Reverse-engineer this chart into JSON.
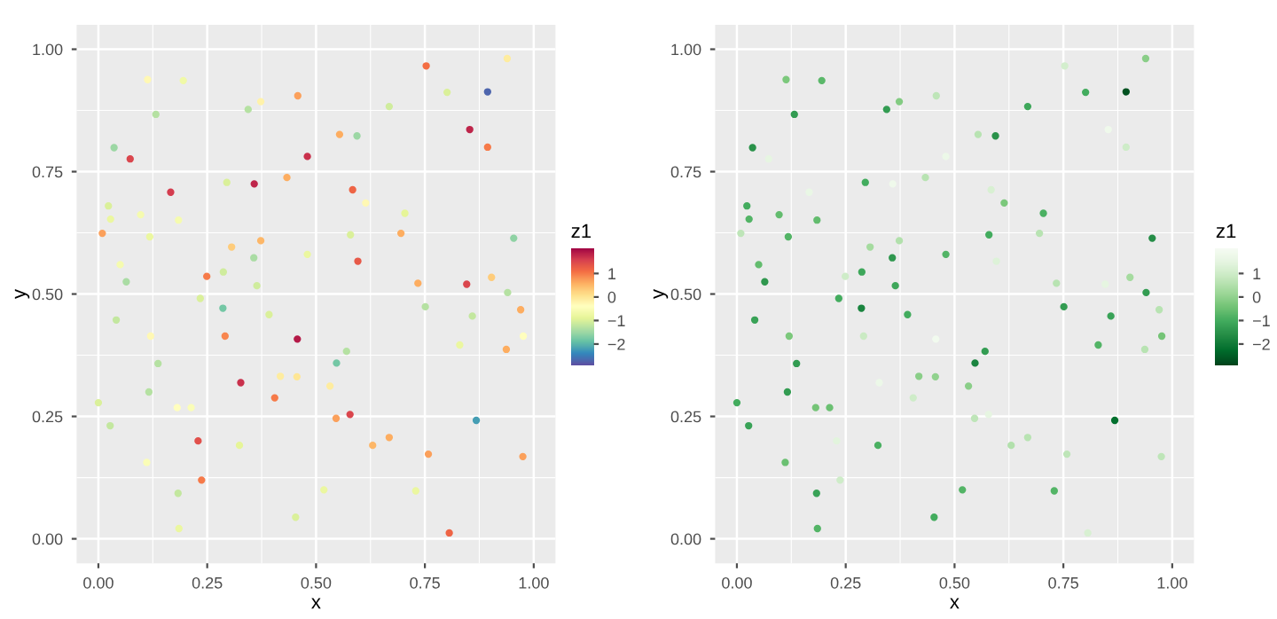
{
  "chart_data": [
    {
      "type": "scatter",
      "xlabel": "x",
      "ylabel": "y",
      "clabel": "z1",
      "grid": true,
      "marker": "circle",
      "x": [
        0.073,
        0.166,
        0.009,
        0.249,
        0.286,
        0.291,
        0.327,
        0.229,
        0.237,
        0.185,
        0.027,
        0.111,
        0.358,
        0.295,
        0.433,
        0.48,
        0.458,
        0.373,
        0.554,
        0.584,
        0.614,
        0.596,
        0.695,
        0.734,
        0.753,
        0.853,
        0.894,
        0.894,
        0.939,
        0.846,
        0.903,
        0.97,
        0.937,
        0.976,
        0.954,
        0.868,
        0.975,
        0.806,
        0.758,
        0.729,
        0.668,
        0.63,
        0.578,
        0.546,
        0.547,
        0.532,
        0.457,
        0.405,
        0.418,
        0.456,
        0.306,
        0.373,
        0.357,
        0.48,
        0.518,
        0.324,
        0.181,
        0.213,
        0.12,
        0.118,
        0.113,
        0.132,
        0.05,
        0.064,
        0.036,
        0.023,
        0.028,
        0.097,
        0.041,
        0.137,
        0.116,
        0.0,
        0.184,
        0.195,
        0.234,
        0.183,
        0.287,
        0.344,
        0.364,
        0.392,
        0.453,
        0.57,
        0.579,
        0.594,
        0.668,
        0.704,
        0.751,
        0.801,
        0.83,
        0.859,
        0.94
      ],
      "values": [
        0.776,
        0.708,
        0.624,
        0.536,
        0.471,
        0.414,
        0.319,
        0.2,
        0.12,
        0.021,
        0.231,
        0.156,
        0.725,
        0.728,
        0.738,
        0.781,
        0.905,
        0.893,
        0.826,
        0.713,
        0.686,
        0.567,
        0.624,
        0.522,
        0.966,
        0.836,
        0.8,
        0.913,
        0.981,
        0.52,
        0.534,
        0.468,
        0.387,
        0.414,
        0.614,
        0.242,
        0.168,
        0.012,
        0.173,
        0.098,
        0.207,
        0.191,
        0.254,
        0.246,
        0.359,
        0.312,
        0.408,
        0.288,
        0.332,
        0.331,
        0.596,
        0.609,
        0.574,
        0.581,
        0.1,
        0.191,
        0.268,
        0.268,
        0.414,
        0.617,
        0.938,
        0.867,
        0.56,
        0.525,
        0.799,
        0.68,
        0.653,
        0.662,
        0.447,
        0.358,
        0.3,
        0.278,
        0.651,
        0.936,
        0.491,
        0.093,
        0.545,
        0.877,
        0.517,
        0.458,
        0.044,
        0.383,
        0.621,
        0.823,
        0.883,
        0.665,
        0.474,
        0.912,
        0.396,
        0.455,
        0.503
      ],
      "cvalues": [
        1.5,
        1.6,
        0.7,
        1.0,
        -1.8,
        0.9,
        1.7,
        1.4,
        1.0,
        -0.8,
        -1.2,
        -0.5,
        1.8,
        -1.0,
        0.6,
        1.7,
        0.7,
        -0.2,
        0.6,
        1.2,
        -0.3,
        1.3,
        0.6,
        0.6,
        1.1,
        1.8,
        1.0,
        -2.7,
        -0.1,
        1.5,
        0.3,
        0.6,
        0.6,
        -0.4,
        -1.6,
        -2.2,
        0.7,
        1.2,
        0.7,
        -0.8,
        0.6,
        0.5,
        1.5,
        0.7,
        -1.8,
        -0.1,
        1.9,
        1.0,
        -0.1,
        0.0,
        0.3,
        0.5,
        -1.4,
        -0.8,
        -0.8,
        -0.9,
        -0.4,
        -0.5,
        -0.3,
        -0.8,
        -0.3,
        -1.3,
        -0.6,
        -1.4,
        -1.5,
        -1.0,
        -0.8,
        -0.6,
        -1.2,
        -1.3,
        -1.3,
        -1.0,
        -0.6,
        -0.7,
        -1.0,
        -1.2,
        -1.1,
        -1.3,
        -1.1,
        -1.0,
        -1.0,
        -1.3,
        -1.0,
        -1.5,
        -1.1,
        -0.9,
        -1.3,
        -1.0,
        -0.8,
        -1.2,
        -1.3
      ],
      "xlim": [
        -0.05,
        1.05
      ],
      "ylim": [
        -0.05,
        1.05
      ],
      "xticks": [
        {
          "value": 0,
          "label": "0.00"
        },
        {
          "value": 0.25,
          "label": "0.25"
        },
        {
          "value": 0.5,
          "label": "0.50"
        },
        {
          "value": 0.75,
          "label": "0.75"
        },
        {
          "value": 1,
          "label": "1.00"
        }
      ],
      "yticks": [
        {
          "value": 0,
          "label": "0.00"
        },
        {
          "value": 0.25,
          "label": "0.25"
        },
        {
          "value": 0.5,
          "label": "0.50"
        },
        {
          "value": 0.75,
          "label": "0.75"
        },
        {
          "value": 1,
          "label": "1.00"
        }
      ],
      "clim": [
        -2.9,
        2.1
      ],
      "cticks": [
        -2,
        -1,
        0,
        1
      ]
    },
    {
      "type": "scatter",
      "xlabel": "x",
      "ylabel": "y",
      "clabel": "z1",
      "grid": true,
      "marker": "circle",
      "x": [
        0.073,
        0.166,
        0.009,
        0.249,
        0.286,
        0.291,
        0.327,
        0.229,
        0.237,
        0.185,
        0.027,
        0.111,
        0.358,
        0.295,
        0.433,
        0.48,
        0.458,
        0.373,
        0.554,
        0.584,
        0.614,
        0.596,
        0.695,
        0.734,
        0.753,
        0.853,
        0.894,
        0.894,
        0.939,
        0.846,
        0.903,
        0.97,
        0.937,
        0.976,
        0.954,
        0.868,
        0.975,
        0.806,
        0.758,
        0.729,
        0.668,
        0.63,
        0.578,
        0.546,
        0.547,
        0.532,
        0.457,
        0.405,
        0.418,
        0.456,
        0.306,
        0.373,
        0.357,
        0.48,
        0.518,
        0.324,
        0.181,
        0.213,
        0.12,
        0.118,
        0.113,
        0.132,
        0.05,
        0.064,
        0.036,
        0.023,
        0.028,
        0.097,
        0.041,
        0.137,
        0.116,
        0.0,
        0.184,
        0.195,
        0.234,
        0.183,
        0.287,
        0.344,
        0.364,
        0.392,
        0.453,
        0.57,
        0.579,
        0.594,
        0.668,
        0.704,
        0.751,
        0.801,
        0.83,
        0.859,
        0.94
      ],
      "values": [
        0.776,
        0.708,
        0.624,
        0.536,
        0.471,
        0.414,
        0.319,
        0.2,
        0.12,
        0.021,
        0.231,
        0.156,
        0.725,
        0.728,
        0.738,
        0.781,
        0.905,
        0.893,
        0.826,
        0.713,
        0.686,
        0.567,
        0.624,
        0.522,
        0.966,
        0.836,
        0.8,
        0.913,
        0.981,
        0.52,
        0.534,
        0.468,
        0.387,
        0.414,
        0.614,
        0.242,
        0.168,
        0.012,
        0.173,
        0.098,
        0.207,
        0.191,
        0.254,
        0.246,
        0.359,
        0.312,
        0.408,
        0.288,
        0.332,
        0.331,
        0.596,
        0.609,
        0.574,
        0.581,
        0.1,
        0.191,
        0.268,
        0.268,
        0.414,
        0.617,
        0.938,
        0.867,
        0.56,
        0.525,
        0.799,
        0.68,
        0.653,
        0.662,
        0.447,
        0.358,
        0.3,
        0.278,
        0.651,
        0.936,
        0.491,
        0.093,
        0.545,
        0.877,
        0.517,
        0.458,
        0.044,
        0.383,
        0.621,
        0.823,
        0.883,
        0.665,
        0.474,
        0.912,
        0.396,
        0.455,
        0.503
      ],
      "cvalues": [
        1.5,
        1.6,
        0.7,
        1.0,
        -1.8,
        0.9,
        1.7,
        1.4,
        1.0,
        -0.8,
        -1.2,
        -0.5,
        1.8,
        -1.0,
        0.6,
        1.7,
        0.7,
        -0.2,
        0.6,
        1.2,
        -0.3,
        1.3,
        0.6,
        0.6,
        1.1,
        1.8,
        1.0,
        -2.7,
        -0.1,
        1.5,
        0.3,
        0.6,
        0.6,
        -0.4,
        -1.6,
        -2.2,
        0.7,
        1.2,
        0.7,
        -0.8,
        0.6,
        0.5,
        1.5,
        0.7,
        -1.8,
        -0.1,
        1.9,
        1.0,
        -0.1,
        0.0,
        0.3,
        0.5,
        -1.4,
        -0.8,
        -0.8,
        -0.9,
        -0.4,
        -0.5,
        -0.3,
        -0.8,
        -0.3,
        -1.3,
        -0.6,
        -1.4,
        -1.5,
        -1.0,
        -0.8,
        -0.6,
        -1.2,
        -1.3,
        -1.3,
        -1.0,
        -0.6,
        -0.7,
        -1.0,
        -1.2,
        -1.1,
        -1.3,
        -1.1,
        -1.0,
        -1.0,
        -1.3,
        -1.0,
        -1.5,
        -1.1,
        -0.9,
        -1.3,
        -1.0,
        -0.8,
        -1.2,
        -1.3
      ],
      "xlim": [
        -0.05,
        1.05
      ],
      "ylim": [
        -0.05,
        1.05
      ],
      "xticks": [
        {
          "value": 0,
          "label": "0.00"
        },
        {
          "value": 0.25,
          "label": "0.25"
        },
        {
          "value": 0.5,
          "label": "0.50"
        },
        {
          "value": 0.75,
          "label": "0.75"
        },
        {
          "value": 1,
          "label": "1.00"
        }
      ],
      "yticks": [
        {
          "value": 0,
          "label": "0.00"
        },
        {
          "value": 0.25,
          "label": "0.25"
        },
        {
          "value": 0.5,
          "label": "0.50"
        },
        {
          "value": 0.75,
          "label": "0.75"
        },
        {
          "value": 1,
          "label": "1.00"
        }
      ],
      "clim": [
        -2.9,
        2.1
      ],
      "cticks": [
        -2,
        -1,
        0,
        1
      ]
    }
  ]
}
